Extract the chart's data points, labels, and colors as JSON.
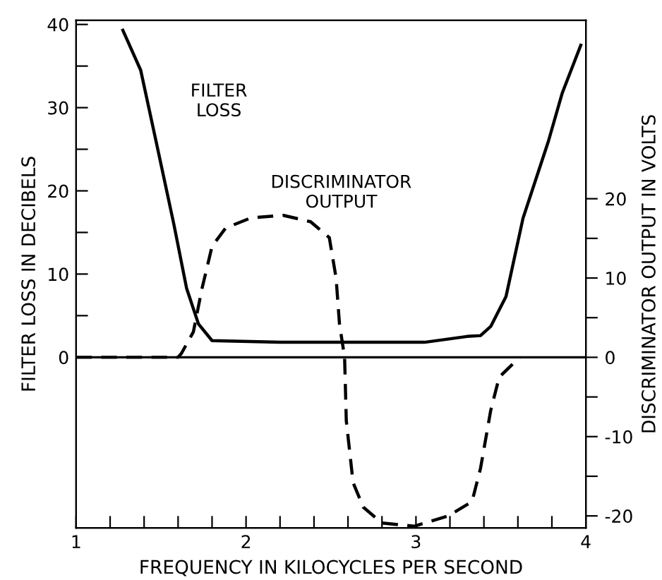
{
  "chart_data": {
    "type": "line",
    "xlabel": "FREQUENCY IN KILOCYCLES PER SECOND",
    "ylabel": "FILTER LOSS IN DECIBELS",
    "y2label": "DISCRIMINATOR OUTPUT IN VOLTS",
    "xlim": [
      1,
      4
    ],
    "xticks": [
      1,
      {
        "value": 1.2,
        "label": null
      },
      {
        "value": 1.4,
        "label": null
      },
      {
        "value": 1.6,
        "label": null
      },
      {
        "value": 1.8,
        "label": null
      },
      2,
      {
        "value": 2.2,
        "label": null
      },
      {
        "value": 2.4,
        "label": null
      },
      {
        "value": 2.6,
        "label": null
      },
      {
        "value": 2.8,
        "label": null
      },
      3,
      {
        "value": 3.2,
        "label": null
      },
      {
        "value": 3.4,
        "label": null
      },
      {
        "value": 3.6,
        "label": null
      },
      {
        "value": 3.8,
        "label": null
      },
      4
    ],
    "ylim": [
      -20.5,
      40.5
    ],
    "yticks": [
      0,
      {
        "value": 5,
        "label": null
      },
      10,
      {
        "value": 15,
        "label": null
      },
      20,
      {
        "value": 25,
        "label": null
      },
      30,
      {
        "value": 35,
        "label": null
      },
      40
    ],
    "y2lim": [
      -21.5,
      42.5
    ],
    "y2ticks": [
      -20,
      {
        "value": -15,
        "label": null
      },
      -10,
      {
        "value": -5,
        "label": null
      },
      0,
      {
        "value": 5,
        "label": null
      },
      10,
      {
        "value": 15,
        "label": null
      },
      20
    ],
    "ref_lines": [
      {
        "axis": "y",
        "value": 0,
        "color": "#000000",
        "line_style": "solid"
      }
    ],
    "grid": false,
    "legend": false,
    "marker": "none",
    "series": [
      {
        "color": "#000000",
        "line_style": "solid",
        "x": [
          1.275,
          1.38,
          1.47,
          1.575,
          1.65,
          1.72,
          1.8,
          2.2,
          2.6,
          3.05,
          3.3,
          3.38,
          3.44,
          3.53,
          3.63,
          3.78,
          3.86,
          3.97
        ],
        "values": [
          39.3,
          34.5,
          26,
          16,
          8.3,
          4,
          2,
          1.8,
          1.8,
          1.8,
          2.5,
          2.6,
          3.7,
          7.3,
          16.7,
          26,
          31.7,
          37.5
        ]
      },
      {
        "color": "#000000",
        "line_style": "dashed",
        "axis": "y2",
        "x": [
          1.0,
          1.6,
          1.62,
          1.69,
          1.74,
          1.8,
          1.88,
          2.03,
          2.22,
          2.38,
          2.49,
          2.53,
          2.55,
          2.58,
          2.59,
          2.63,
          2.69,
          2.8,
          2.99,
          3.19,
          3.33,
          3.38,
          3.44,
          3.49,
          3.61
        ],
        "values": [
          0,
          0,
          0.5,
          3.2,
          8.6,
          14,
          16.3,
          17.6,
          17.9,
          17.1,
          15.1,
          10,
          4.2,
          0,
          -8,
          -15.8,
          -18.9,
          -20.9,
          -21.3,
          -20,
          -18.2,
          -14,
          -6.7,
          -2.5,
          0
        ]
      }
    ],
    "annotations": [
      "FILTER\nLOSS",
      "DISCRIMINATOR\nOUTPUT"
    ]
  }
}
